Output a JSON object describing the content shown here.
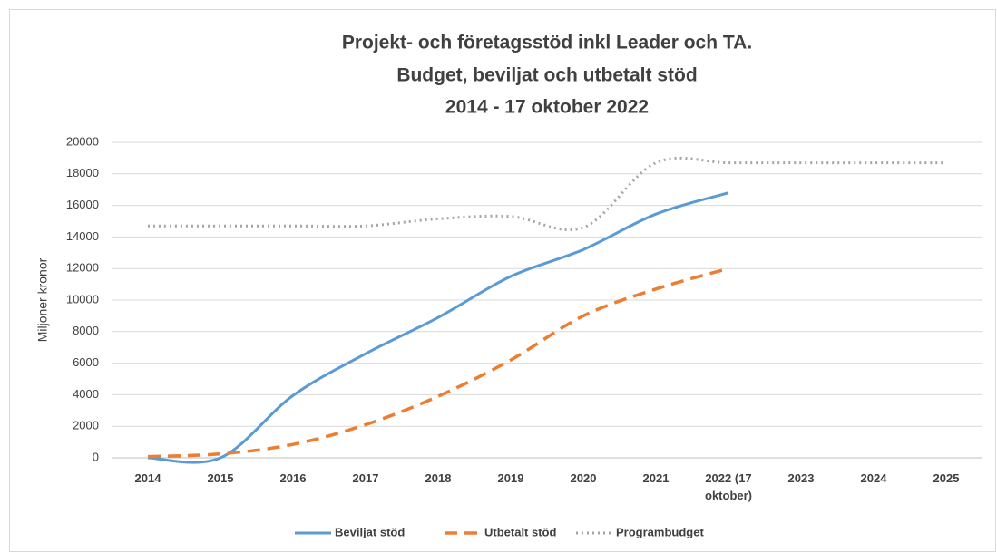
{
  "chart_data": {
    "type": "line",
    "title": [
      "Projekt- och företagsstöd inkl Leader och TA.",
      "Budget, beviljat och utbetalt stöd",
      "2014 - 17 oktober 2022"
    ],
    "y_label": "Miljoner kronor",
    "categories": [
      "2014",
      "2015",
      "2016",
      "2017",
      "2018",
      "2019",
      "2020",
      "2021",
      "2022 (17 oktober)",
      "2023",
      "2024",
      "2025"
    ],
    "series": [
      {
        "name": "Beviljat stöd",
        "color": "#5b9bd5",
        "dash": "solid",
        "values": [
          0,
          0,
          3950,
          6600,
          8900,
          11500,
          13200,
          15450,
          16800,
          null,
          null,
          null
        ]
      },
      {
        "name": "Utbetalt stöd",
        "color": "#ed7d31",
        "dash": "dashed",
        "values": [
          80,
          250,
          850,
          2100,
          3900,
          6200,
          9000,
          10700,
          12000,
          null,
          null,
          null
        ]
      },
      {
        "name": "Programbudget",
        "color": "#a5a5a5",
        "dash": "dotted",
        "values": [
          14700,
          14700,
          14700,
          14700,
          15150,
          15300,
          14600,
          18700,
          18700,
          18700,
          18700,
          18700
        ]
      }
    ],
    "ylim": [
      0,
      20000
    ],
    "yticks": [
      0,
      2000,
      4000,
      6000,
      8000,
      10000,
      12000,
      14000,
      16000,
      18000,
      20000
    ],
    "grid": true,
    "legend": "bottom"
  }
}
